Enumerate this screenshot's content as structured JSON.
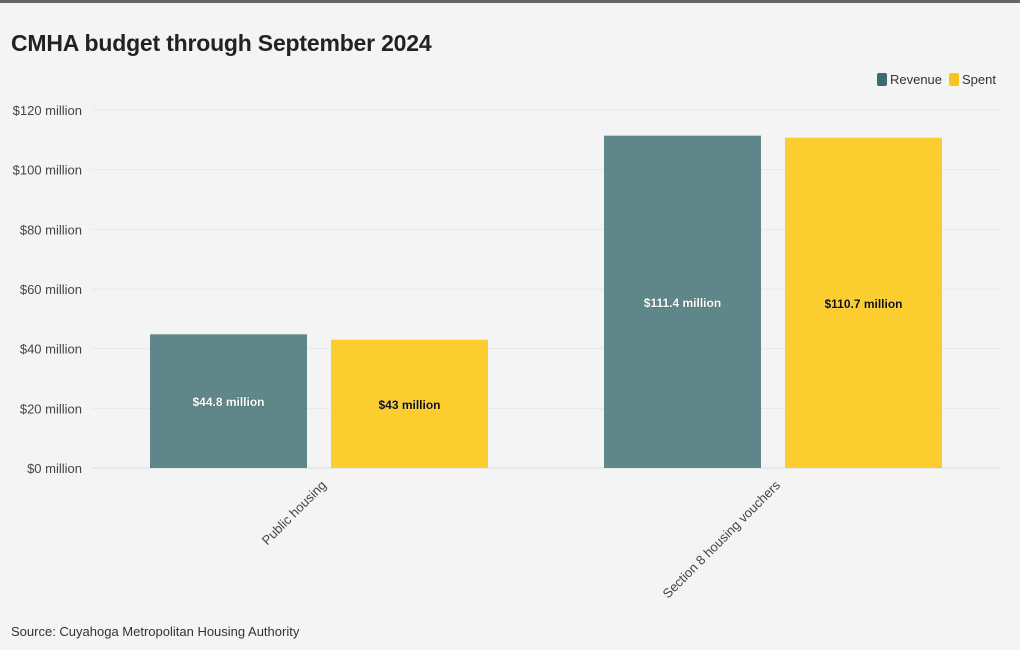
{
  "chart_data": {
    "type": "bar",
    "title": "CMHA budget through September 2024",
    "categories": [
      "Public housing",
      "Section 8 housing vouchers"
    ],
    "series": [
      {
        "name": "Revenue",
        "color": "#5f8789",
        "legend_color": "#3d6b6e",
        "label_color": "#ffffff",
        "values": [
          44.8,
          111.4
        ],
        "labels": [
          "$44.8 million",
          "$111.4 million"
        ]
      },
      {
        "name": "Spent",
        "color": "#fccd2f",
        "legend_color": "#f7c520",
        "label_color": "#111111",
        "values": [
          43,
          110.7
        ],
        "labels": [
          "$43 million",
          "$110.7 million"
        ]
      }
    ],
    "ylim": [
      0,
      120
    ],
    "yticks": [
      0,
      20,
      40,
      60,
      80,
      100,
      120
    ],
    "ytick_labels": [
      "$0 million",
      "$20 million",
      "$40 million",
      "$60 million",
      "$80 million",
      "$100 million",
      "$120 million"
    ],
    "xlabel": "",
    "ylabel": "",
    "grid": true,
    "legend_position": "top-right"
  },
  "source": "Source: Cuyahoga Metropolitan Housing Authority"
}
